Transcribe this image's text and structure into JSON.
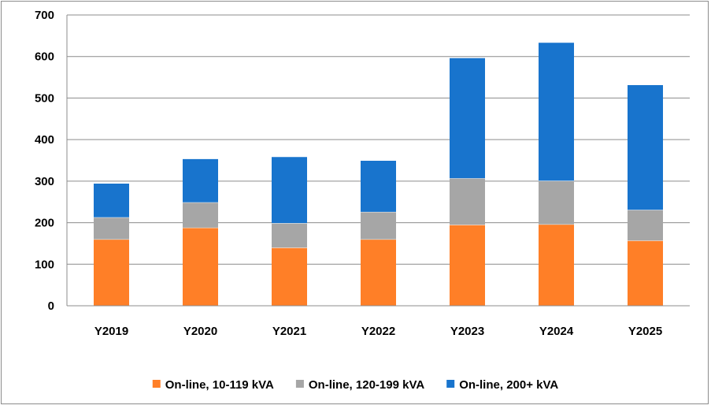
{
  "chart_data": {
    "type": "bar",
    "stacked": true,
    "categories": [
      "Y2019",
      "Y2020",
      "Y2021",
      "Y2022",
      "Y2023",
      "Y2024",
      "Y2025"
    ],
    "series": [
      {
        "name": "On-line, 10-119 kVA",
        "color": "#ff7f27",
        "values": [
          160,
          188,
          140,
          160,
          195,
          196,
          157
        ]
      },
      {
        "name": "On-line, 120-199 kVA",
        "color": "#a6a6a6",
        "values": [
          53,
          61,
          59,
          66,
          112,
          105,
          74
        ]
      },
      {
        "name": "On-line, 200+ kVA",
        "color": "#1874cd",
        "values": [
          82,
          105,
          160,
          124,
          290,
          333,
          301
        ]
      }
    ],
    "ylim": [
      0,
      700
    ],
    "yticks": [
      0,
      100,
      200,
      300,
      400,
      500,
      600,
      700
    ],
    "title": "",
    "xlabel": "",
    "ylabel": "",
    "grid": true,
    "legend": "bottom"
  }
}
